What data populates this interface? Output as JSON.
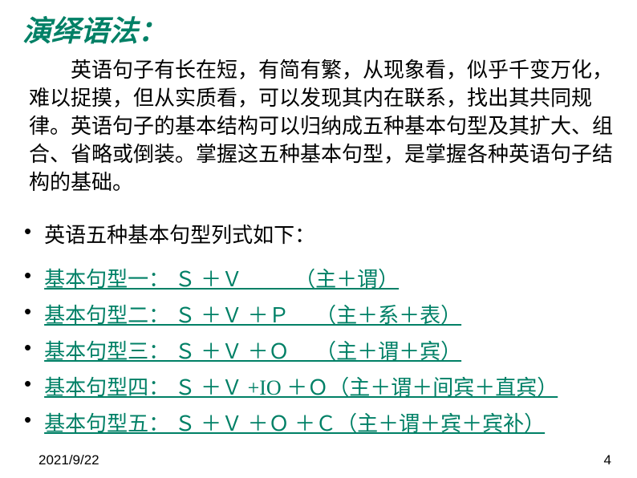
{
  "title": "演绎语法：",
  "intro": "英语句子有长在短，有简有繁，从现象看，似乎千变万化，难以捉摸，但从实质看，可以发现其内在联系，找出其共同规律。英语句子的基本结构可以归纳成五种基本句型及其扩大、组合、省略或倒装。掌握这五种基本句型，是掌握各种英语句子结构的基础。",
  "list_header": "英语五种基本句型列式如下：",
  "patterns": [
    "基本句型一： Ｓ ＋Ｖ          （主＋谓）",
    "基本句型二： Ｓ ＋Ｖ ＋Ｐ     （主＋系＋表）",
    "基本句型三： Ｓ ＋Ｖ ＋Ｏ     （主＋谓＋宾）",
    "基本句型四： Ｓ ＋Ｖ +IO ＋Ｏ（主＋谓＋间宾＋直宾）",
    "基本句型五： Ｓ ＋Ｖ ＋Ｏ ＋Ｃ（主＋谓＋宾＋宾补）"
  ],
  "footer_date": "2021/9/22",
  "footer_page": "4",
  "colors": {
    "title_color": "#008066",
    "link_color": "#008066",
    "text_color": "#000000",
    "background": "#ffffff"
  },
  "typography": {
    "title_fontsize": 36,
    "body_fontsize": 26,
    "footer_fontsize": 17
  }
}
